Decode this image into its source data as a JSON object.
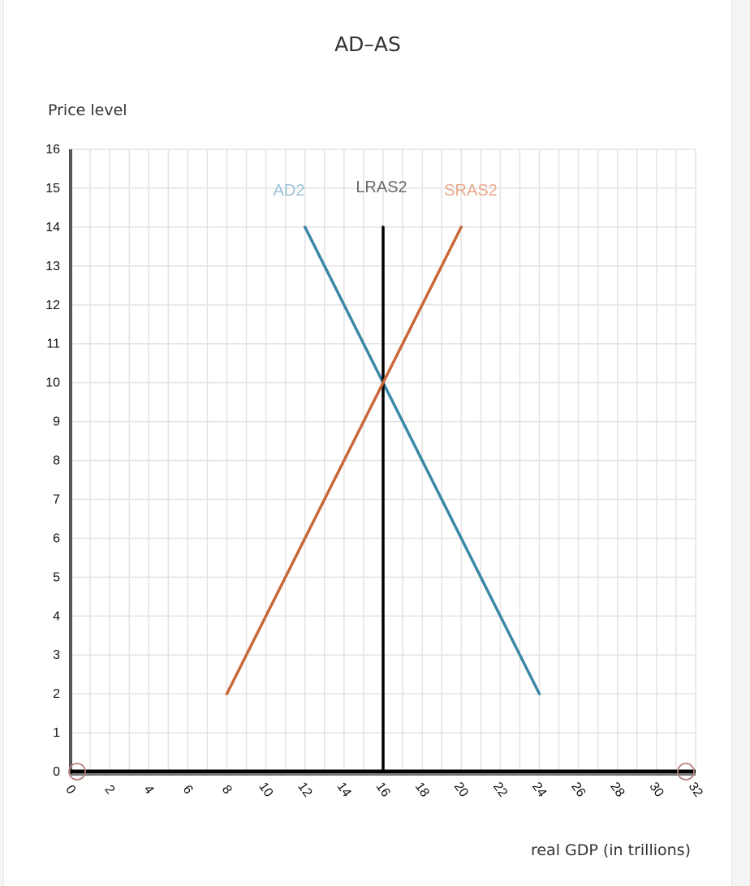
{
  "chart_data": {
    "type": "line",
    "title": "AD–AS",
    "xlabel": "real GDP (in trillions)",
    "ylabel": "Price level",
    "xlim": [
      0,
      32
    ],
    "ylim": [
      0,
      16
    ],
    "x_ticks": [
      0,
      2,
      4,
      6,
      8,
      10,
      12,
      14,
      16,
      18,
      20,
      22,
      24,
      26,
      28,
      30,
      32
    ],
    "y_ticks": [
      0,
      1,
      2,
      3,
      4,
      5,
      6,
      7,
      8,
      9,
      10,
      11,
      12,
      13,
      14,
      15,
      16
    ],
    "grid": true,
    "series": [
      {
        "name": "AD2",
        "color": "#3a87a6",
        "label_color": "#9cc3d9",
        "points": [
          [
            12,
            14
          ],
          [
            24,
            2
          ]
        ]
      },
      {
        "name": "LRAS2",
        "color": "#000000",
        "label_color": "#6b6b6b",
        "points": [
          [
            16,
            0
          ],
          [
            16,
            14
          ]
        ]
      },
      {
        "name": "SRAS2",
        "color": "#c9683a",
        "label_color": "#e8a88a",
        "points": [
          [
            8,
            2
          ],
          [
            20,
            14
          ]
        ]
      }
    ],
    "handles": [
      [
        0,
        0
      ],
      [
        32,
        0
      ]
    ]
  }
}
